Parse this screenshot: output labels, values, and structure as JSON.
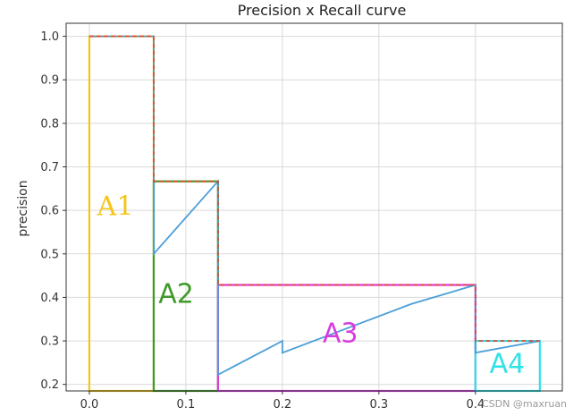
{
  "chart_data": {
    "type": "line",
    "title": "Precision x Recall curve",
    "xlabel": "",
    "ylabel": "precision",
    "xlim": [
      -0.024,
      0.49
    ],
    "ylim": [
      0.185,
      1.03
    ],
    "grid": true,
    "x_ticks": [
      "0.0",
      "0.1",
      "0.2",
      "0.3",
      "0.4"
    ],
    "x_tick_values": [
      0.0,
      0.1,
      0.2,
      0.3,
      0.4
    ],
    "y_ticks": [
      "0.2",
      "0.3",
      "0.4",
      "0.5",
      "0.6",
      "0.7",
      "0.8",
      "0.9",
      "1.0"
    ],
    "y_tick_values": [
      0.2,
      0.3,
      0.4,
      0.5,
      0.6,
      0.7,
      0.8,
      0.9,
      1.0
    ],
    "series": [
      {
        "color": "#4a9fd8",
        "x": [
          0.0,
          0.0667,
          0.0667,
          0.1333,
          0.1333,
          0.2,
          0.2,
          0.3333,
          0.4,
          0.4,
          0.4667
        ],
        "y": [
          1.0,
          1.0,
          0.5,
          0.6667,
          0.2222,
          0.3,
          0.2727,
          0.3846,
          0.4286,
          0.2727,
          0.3
        ]
      },
      {
        "style": "dashed",
        "color": "#e8432f",
        "x": [
          0.0,
          0.0667,
          0.0667,
          0.1333,
          0.1333,
          0.4,
          0.4,
          0.4667
        ],
        "y": [
          1.0,
          1.0,
          0.6667,
          0.6667,
          0.4286,
          0.4286,
          0.3,
          0.3
        ]
      }
    ],
    "regions": [
      {
        "label": "A1",
        "color": "#f5c518",
        "x0": 0.0,
        "x1": 0.0667,
        "y0": 0.185,
        "y1": 1.0,
        "label_x": 0.027,
        "label_y": 0.605
      },
      {
        "label": "A2",
        "color": "#3f9a2a",
        "x0": 0.0667,
        "x1": 0.1333,
        "y0": 0.185,
        "y1": 0.6667,
        "label_x": 0.09,
        "label_y": 0.405
      },
      {
        "label": "A3",
        "color": "#d93be0",
        "x0": 0.1333,
        "x1": 0.4,
        "y0": 0.185,
        "y1": 0.4286,
        "label_x": 0.26,
        "label_y": 0.315
      },
      {
        "label": "A4",
        "color": "#2ee2e8",
        "x0": 0.4,
        "x1": 0.4667,
        "y0": 0.185,
        "y1": 0.3,
        "label_x": 0.433,
        "label_y": 0.245
      }
    ]
  },
  "watermark": "CSDN @maxruan"
}
